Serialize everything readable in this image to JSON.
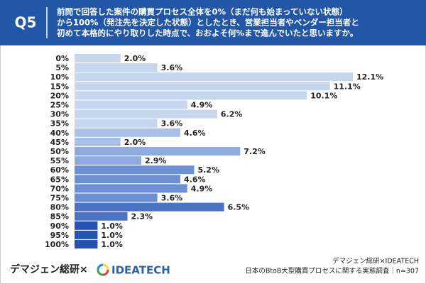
{
  "chart_data": {
    "type": "bar",
    "title_label": "Q5",
    "title_lines": [
      "前問で回答した案件の購買プロセス全体を0%（まだ何も始まっていない状態）",
      "から100%（発注先を決定した状態）としたとき、営業担当者やベンダー担当者と",
      "初めて本格的にやり取りした時点で、おおよそ何%まで進んでいたと思いますか。"
    ],
    "categories": [
      "0%",
      "5%",
      "10%",
      "15%",
      "20%",
      "25%",
      "30%",
      "35%",
      "40%",
      "45%",
      "50%",
      "55%",
      "60%",
      "65%",
      "70%",
      "75%",
      "80%",
      "85%",
      "90%",
      "95%",
      "100%"
    ],
    "values": [
      2.0,
      3.6,
      12.1,
      11.1,
      10.1,
      4.9,
      6.2,
      3.6,
      4.6,
      2.0,
      7.2,
      2.9,
      5.2,
      4.6,
      4.9,
      3.6,
      6.5,
      2.3,
      1.0,
      1.0,
      1.0
    ],
    "value_labels": [
      "2.0%",
      "3.6%",
      "12.1%",
      "11.1%",
      "10.1%",
      "4.9%",
      "6.2%",
      "3.6%",
      "4.6%",
      "2.0%",
      "7.2%",
      "2.9%",
      "5.2%",
      "4.6%",
      "4.9%",
      "3.6%",
      "6.5%",
      "2.3%",
      "1.0%",
      "1.0%",
      "1.0%"
    ],
    "colors": [
      "#c6d6ef",
      "#c6d6ef",
      "#c6d6ef",
      "#c6d6ef",
      "#c6d6ef",
      "#c6d6ef",
      "#c6d6ef",
      "#c6d6ef",
      "#a9c1e8",
      "#a9c1e8",
      "#8eaade",
      "#8eaade",
      "#6d8fd3",
      "#6d8fd3",
      "#6d8fd3",
      "#6d8fd3",
      "#4a72c5",
      "#4a72c5",
      "#2553b4",
      "#2553b4",
      "#2553b4"
    ],
    "brand": "デマジェン総研×",
    "logo": "IDEATECH",
    "source_lines": [
      "デマジェン総研×IDEATECH",
      "日本のBtoB大型購買プロセスに関する実態調査｜n=307"
    ]
  }
}
